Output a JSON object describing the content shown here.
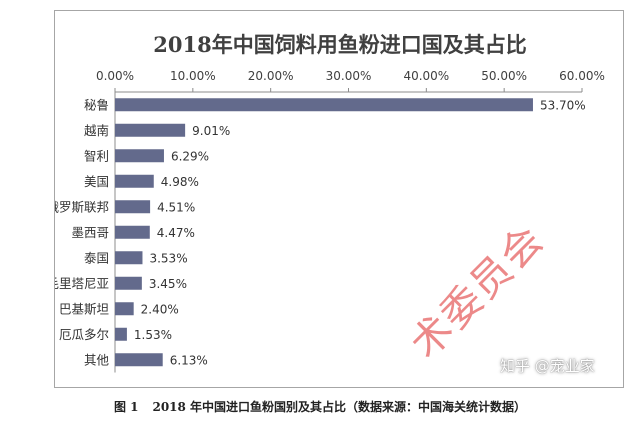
{
  "chart_data": {
    "type": "bar",
    "orientation": "horizontal",
    "title": "2018年中国饲料用鱼粉进口国及其占比",
    "categories": [
      "秘鲁",
      "越南",
      "智利",
      "美国",
      "俄罗斯联邦",
      "墨西哥",
      "泰国",
      "毛里塔尼亚",
      "巴基斯坦",
      "厄瓜多尔",
      "其他"
    ],
    "values": [
      53.7,
      9.01,
      6.29,
      4.98,
      4.51,
      4.47,
      3.53,
      3.45,
      2.4,
      1.53,
      6.13
    ],
    "value_labels": [
      "53.70%",
      "9.01%",
      "6.29%",
      "4.98%",
      "4.51%",
      "4.47%",
      "3.53%",
      "3.45%",
      "2.40%",
      "1.53%",
      "6.13%"
    ],
    "xlim": [
      0,
      60
    ],
    "ticks": [
      0,
      10,
      20,
      30,
      40,
      50,
      60
    ],
    "tick_labels": [
      "0.00%",
      "10.00%",
      "20.00%",
      "30.00%",
      "40.00%",
      "50.00%",
      "60.00%"
    ],
    "axis_position": "top",
    "grid": false,
    "legend": "none",
    "bar_color": "#636a8c"
  },
  "caption": {
    "figure_label": "图 1",
    "text": "2018 年中国进口鱼粉国别及其占比（数据来源：中国海关统计数据）"
  },
  "watermark": {
    "text": "术委员会"
  },
  "brand": {
    "text": "知乎 @宠业家"
  }
}
